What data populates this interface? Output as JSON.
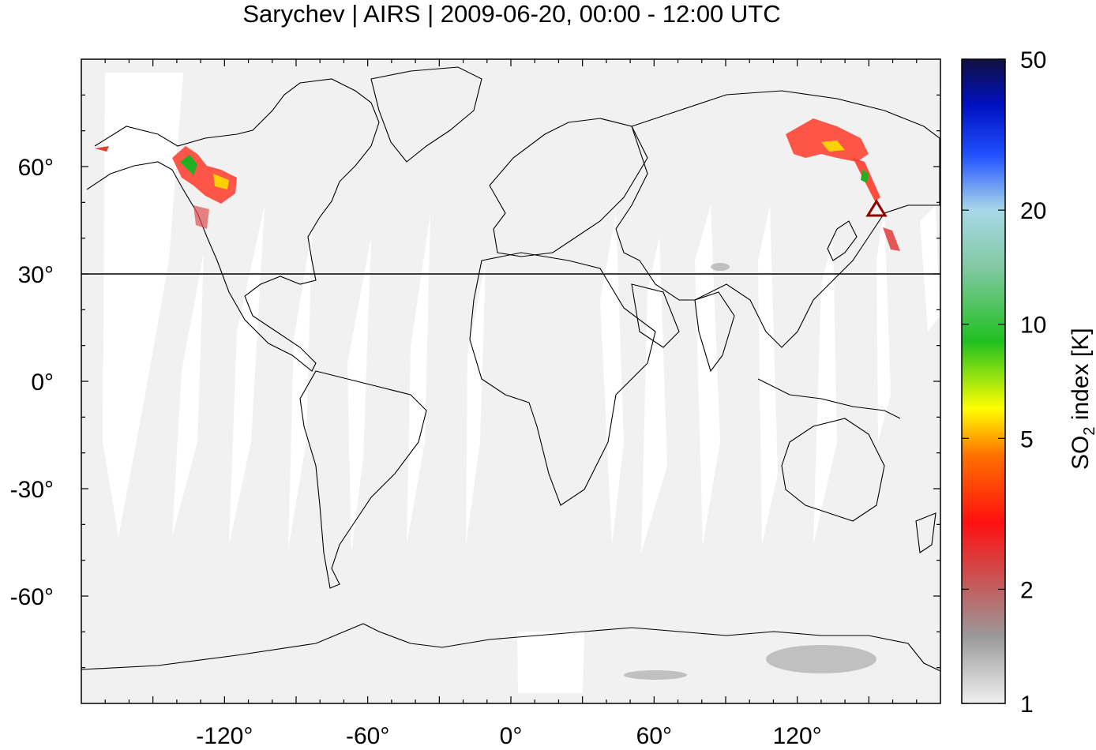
{
  "title": "Sarychev | AIRS | 2009-06-20, 00:00 - 12:00 UTC",
  "map": {
    "projection": "equirectangular",
    "lon_range": [
      -180,
      180
    ],
    "lat_range": [
      -90,
      90
    ],
    "background_color": "#f1f1f1",
    "swath_gap_color": "#ffffff",
    "reference_line_lat": 30,
    "volcano": {
      "name": "Sarychev",
      "lon": 153.2,
      "lat": 48.1,
      "marker": "triangle",
      "color": "#8b0000"
    }
  },
  "x_ticks": [
    {
      "value": -120,
      "label": "-120°"
    },
    {
      "value": -60,
      "label": "-60°"
    },
    {
      "value": 0,
      "label": "0°"
    },
    {
      "value": 60,
      "label": "60°"
    },
    {
      "value": 120,
      "label": "120°"
    }
  ],
  "y_ticks": [
    {
      "value": 60,
      "label": "60°"
    },
    {
      "value": 30,
      "label": "30°"
    },
    {
      "value": 0,
      "label": "0°"
    },
    {
      "value": -30,
      "label": "-30°"
    },
    {
      "value": -60,
      "label": "-60°"
    }
  ],
  "colorbar": {
    "label_main": "SO",
    "label_sub": "2",
    "label_rest": " index [K]",
    "scale": "log",
    "range": [
      1,
      50
    ],
    "ticks": [
      {
        "value": 50,
        "label": "50"
      },
      {
        "value": 20,
        "label": "20"
      },
      {
        "value": 10,
        "label": "10"
      },
      {
        "value": 5,
        "label": "5"
      },
      {
        "value": 2,
        "label": "2"
      },
      {
        "value": 1,
        "label": "1"
      }
    ],
    "stops": [
      {
        "value": 1,
        "color": "#f0f0f0"
      },
      {
        "value": 1.5,
        "color": "#9a9a9a"
      },
      {
        "value": 2,
        "color": "#c06060"
      },
      {
        "value": 3,
        "color": "#ff1010"
      },
      {
        "value": 4.5,
        "color": "#ff7000"
      },
      {
        "value": 6,
        "color": "#ffff00"
      },
      {
        "value": 9,
        "color": "#20c020"
      },
      {
        "value": 14,
        "color": "#80c8a0"
      },
      {
        "value": 20,
        "color": "#a8d8e8"
      },
      {
        "value": 28,
        "color": "#2050ff"
      },
      {
        "value": 38,
        "color": "#0010c0"
      },
      {
        "value": 50,
        "color": "#101040"
      }
    ]
  }
}
